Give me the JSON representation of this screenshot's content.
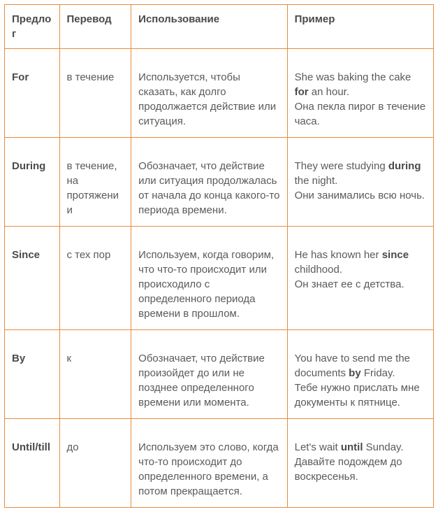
{
  "columns": [
    "Предлог",
    "Перевод",
    "Использование",
    "Пример"
  ],
  "rows": [
    {
      "preposition": "For",
      "translation": "в течение",
      "usage": "Используется, чтобы сказать, как долго продолжается действие или ситуация.",
      "example_pre": "She was baking the cake ",
      "example_bold": "for",
      "example_post": " an hour.",
      "example_ru": "Она пекла пирог в течение часа."
    },
    {
      "preposition": "During",
      "translation": "в течение, на протяжении",
      "usage": "Обозначает, что действие или ситуация продолжалась от начала до конца какого-то периода времени.",
      "example_pre": "They were studying ",
      "example_bold": "during",
      "example_post": " the night.",
      "example_ru": "Они занимались всю ночь."
    },
    {
      "preposition": "Since",
      "translation": "с тех пор",
      "usage": "Используем, когда говорим, что что-то происходит или происходило с определенного периода времени в прошлом.",
      "example_pre": "He has known her ",
      "example_bold": "since",
      "example_post": " childhood.",
      "example_ru": "Он знает ее с детства."
    },
    {
      "preposition": "By",
      "translation": "к",
      "usage": "Обозначает, что действие произойдет до или не позднее определенного времени или момента.",
      "example_pre": "You have to send me the documents ",
      "example_bold": "by",
      "example_post": " Friday.",
      "example_ru": "Тебе нужно прислать мне документы к пятнице."
    },
    {
      "preposition": "Until/till",
      "translation": "до",
      "usage": "Используем это слово, когда что-то происходит до определенного времени, а потом прекращается.",
      "example_pre": "Let's wait ",
      "example_bold": "until",
      "example_post": " Sunday.",
      "example_ru": "Давайте подождем до воскресенья."
    }
  ],
  "colors": {
    "border": "#e98b3b",
    "text": "#5a5a5a",
    "heading": "#4a4a4a",
    "background": "#ffffff"
  }
}
